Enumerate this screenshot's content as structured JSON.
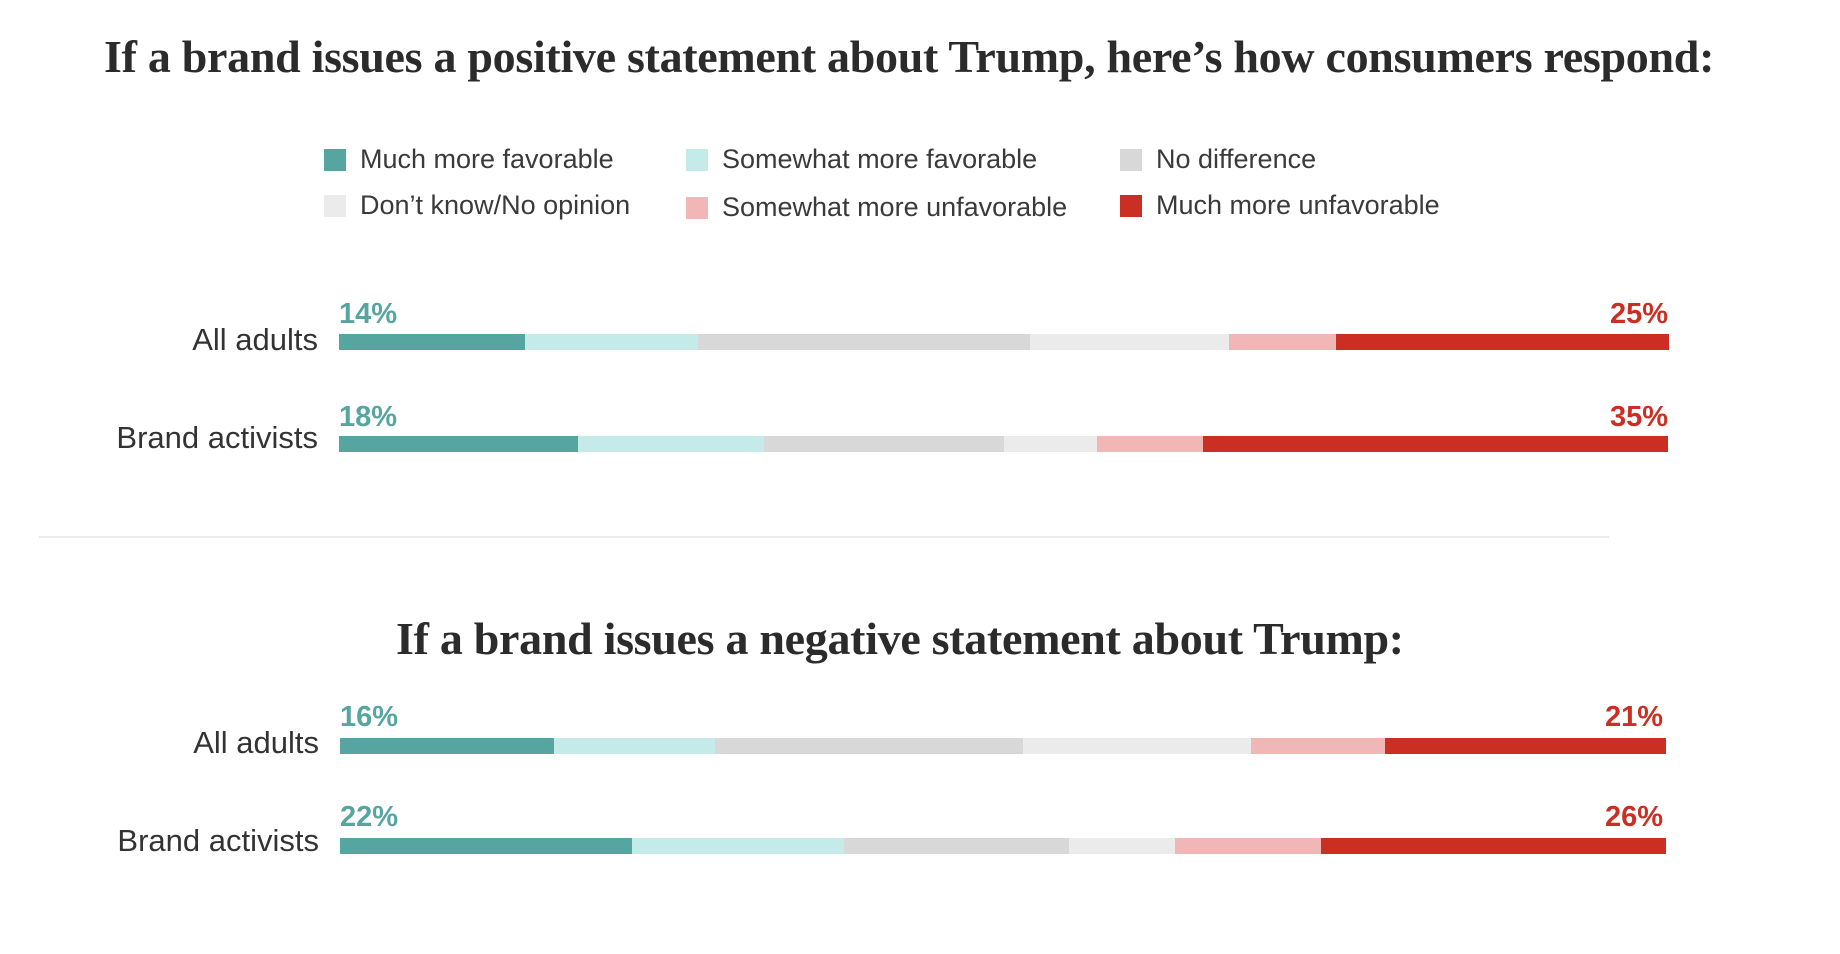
{
  "chart_data": [
    {
      "type": "bar",
      "orientation": "horizontal",
      "stacked": true,
      "title": "If a brand issues a positive statement about Trump, here’s how consumers respond:",
      "xlabel": "",
      "ylabel": "",
      "xlim": [
        0,
        100
      ],
      "categories": [
        "All adults",
        "Brand activists"
      ],
      "series": [
        {
          "name": "Much more favorable",
          "values": [
            14,
            18
          ]
        },
        {
          "name": "Somewhat more favorable",
          "values": [
            13,
            14
          ]
        },
        {
          "name": "No difference",
          "values": [
            25,
            18
          ]
        },
        {
          "name": "Don’t know/No opinion",
          "values": [
            15,
            7
          ]
        },
        {
          "name": "Somewhat more unfavorable",
          "values": [
            8,
            8
          ]
        },
        {
          "name": "Much more unfavorable",
          "values": [
            25,
            35
          ]
        }
      ],
      "data_labels": {
        "left": [
          "14%",
          "18%"
        ],
        "right": [
          "25%",
          "35%"
        ]
      },
      "legend": "top-center",
      "grid": false
    },
    {
      "type": "bar",
      "orientation": "horizontal",
      "stacked": true,
      "title": "If a brand issues a negative statement about Trump:",
      "xlabel": "",
      "ylabel": "",
      "xlim": [
        0,
        100
      ],
      "categories": [
        "All adults",
        "Brand activists"
      ],
      "series": [
        {
          "name": "Much more favorable",
          "values": [
            16,
            22
          ]
        },
        {
          "name": "Somewhat more favorable",
          "values": [
            12,
            16
          ]
        },
        {
          "name": "No difference",
          "values": [
            23,
            17
          ]
        },
        {
          "name": "Don’t know/No opinion",
          "values": [
            17,
            8
          ]
        },
        {
          "name": "Somewhat more unfavorable",
          "values": [
            10,
            11
          ]
        },
        {
          "name": "Much more unfavorable",
          "values": [
            21,
            26
          ]
        }
      ],
      "data_labels": {
        "left": [
          "16%",
          "22%"
        ],
        "right": [
          "21%",
          "26%"
        ]
      },
      "legend": "shared",
      "grid": false
    }
  ],
  "legend": [
    {
      "label": "Much more favorable",
      "color": "#57a5a1"
    },
    {
      "label": "Somewhat more favorable",
      "color": "#c5eaea"
    },
    {
      "label": "No difference",
      "color": "#d8d8d8"
    },
    {
      "label": "Don’t know/No opinion",
      "color": "#ebebeb"
    },
    {
      "label": "Somewhat more unfavorable",
      "color": "#f0b7b6"
    },
    {
      "label": "Much more unfavorable",
      "color": "#cb2f23"
    }
  ],
  "colors": {
    "favorable_label": "#57a5a1",
    "unfavorable_label": "#cb2f23"
  }
}
